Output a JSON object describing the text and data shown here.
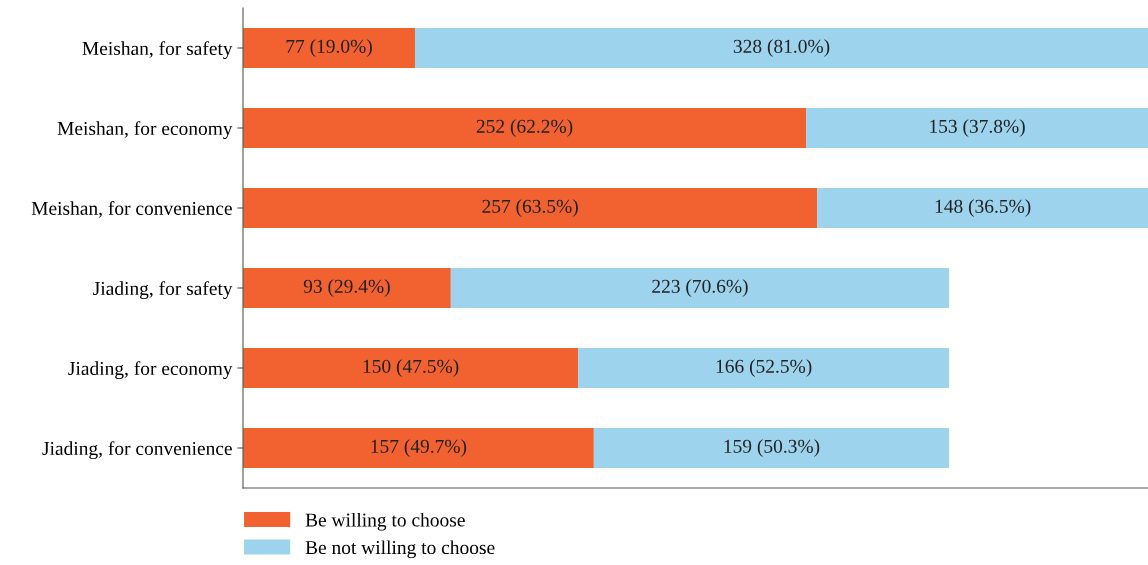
{
  "chart_data": {
    "type": "bar",
    "orientation": "horizontal",
    "stacked": true,
    "categories": [
      "Meishan, for safety",
      "Meishan, for economy",
      "Meishan, for convenience",
      "Jiading, for safety",
      "Jiading, for economy",
      "Jiading, for convenience"
    ],
    "series": [
      {
        "name": "Be willing to choose",
        "color": "#f26130",
        "values": [
          77,
          252,
          257,
          93,
          150,
          157
        ],
        "value_labels": [
          "77 (19.0%)",
          "252 (62.2%)",
          "257 (63.5%)",
          "93 (29.4%)",
          "150 (47.5%)",
          "157 (49.7%)"
        ]
      },
      {
        "name": "Be not willing to choose",
        "color": "#9dd3ec",
        "values": [
          328,
          153,
          148,
          223,
          166,
          159
        ],
        "value_labels": [
          "328 (81.0%)",
          "153 (37.8%)",
          "148 (36.5%)",
          "223 (70.6%)",
          "166 (52.5%)",
          "159 (50.3%)"
        ]
      }
    ],
    "xlim": [
      0,
      405
    ],
    "tick_labels": "y",
    "legend": "bottom left",
    "grid": false
  }
}
